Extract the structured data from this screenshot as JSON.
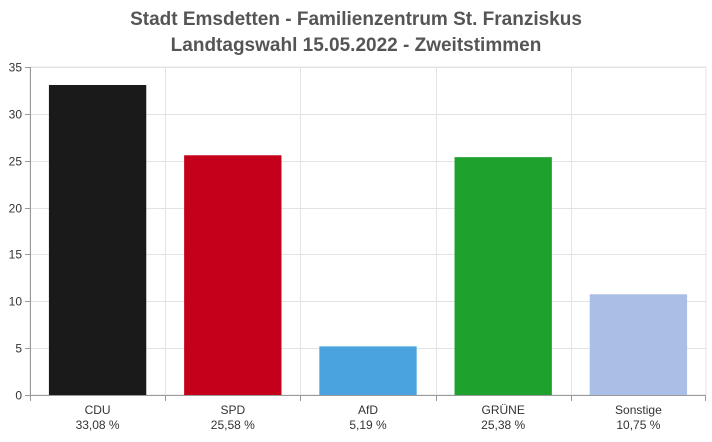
{
  "chart_data": {
    "type": "bar",
    "title": "Stadt Emsdetten - Familienzentrum St. Franziskus",
    "subtitle": "Landtagswahl 15.05.2022  - Zweitstimmen",
    "categories": [
      "CDU",
      "SPD",
      "AfD",
      "GRÜNE",
      "Sonstige"
    ],
    "values": [
      33.08,
      25.58,
      5.19,
      25.38,
      10.75
    ],
    "value_labels": [
      "33,08 %",
      "25,58 %",
      "5,19 %",
      "25,38 %",
      "10,75 %"
    ],
    "colors": [
      "#1a1a1a",
      "#c4001a",
      "#4aa3df",
      "#1fa12e",
      "#aabfe6"
    ],
    "ylim": [
      0,
      35
    ],
    "yticks": [
      "0",
      "5",
      "10",
      "15",
      "20",
      "25",
      "30",
      "35"
    ],
    "grid": true,
    "xlabel": "",
    "ylabel": ""
  }
}
